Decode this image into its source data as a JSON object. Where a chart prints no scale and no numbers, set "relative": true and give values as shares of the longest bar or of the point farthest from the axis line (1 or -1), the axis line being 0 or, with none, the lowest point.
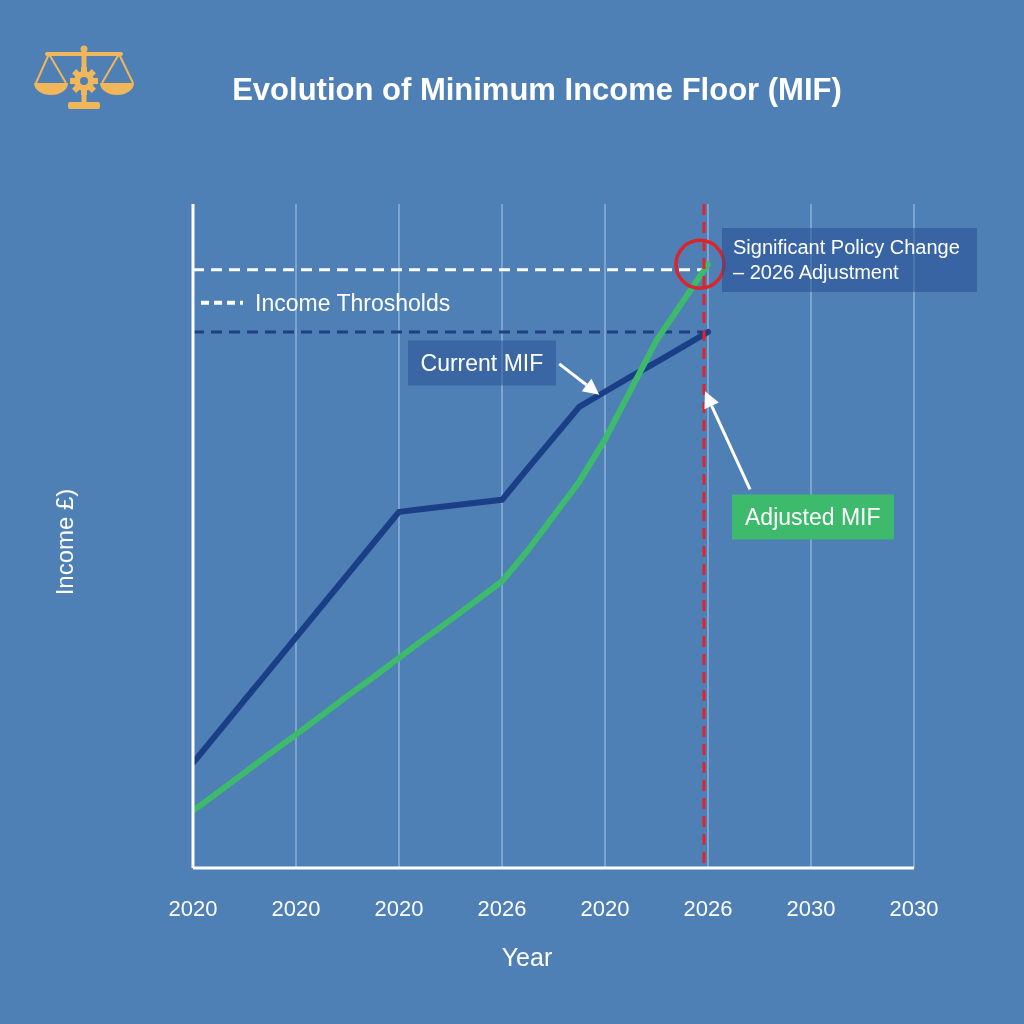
{
  "chart_data": {
    "type": "line",
    "title": "Evolution of Minimum Income Floor (MIF)",
    "xlabel": "Year",
    "ylabel": "Income £)",
    "relative": true,
    "categories": [
      "2020",
      null,
      null,
      null,
      "2020",
      null,
      null,
      null,
      "2020",
      null,
      null,
      null,
      "2026",
      null,
      null,
      null,
      "2020",
      null,
      null,
      null,
      "2026",
      null,
      null,
      null,
      "2030",
      null,
      null,
      null,
      "2030"
    ],
    "grid": "x",
    "series": [
      {
        "name": "Current MIF",
        "color": "#1a3f87",
        "values": [
          0.174,
          0.226,
          0.278,
          0.33,
          0.382,
          0.434,
          0.486,
          0.538,
          0.59,
          0.595,
          0.6,
          0.605,
          0.61,
          0.662,
          0.713,
          0.764,
          0.789,
          0.814,
          0.838,
          0.863,
          0.888,
          null,
          null,
          null,
          null,
          null,
          null,
          null,
          null
        ]
      },
      {
        "name": "Adjusted MIF",
        "color": "#3dba6b",
        "values": [
          0.095,
          0.126,
          0.158,
          0.19,
          0.221,
          0.253,
          0.285,
          0.316,
          0.348,
          0.38,
          0.411,
          0.443,
          0.475,
          0.526,
          0.583,
          0.64,
          0.71,
          0.792,
          0.874,
          0.937,
          1,
          null,
          null,
          null,
          null,
          null,
          null,
          null,
          null
        ]
      }
    ],
    "ref_lines": [
      {
        "axis": "y",
        "value": 0.991,
        "label": "Income Throsholds",
        "color": "#ffffff",
        "line_style": "dashed"
      },
      {
        "axis": "y",
        "value": 0.888,
        "color": "#1f3f80",
        "line_style": "dashed"
      }
    ],
    "annotations": [
      "Significant Policy Change – 2026 Adjustment"
    ]
  }
}
